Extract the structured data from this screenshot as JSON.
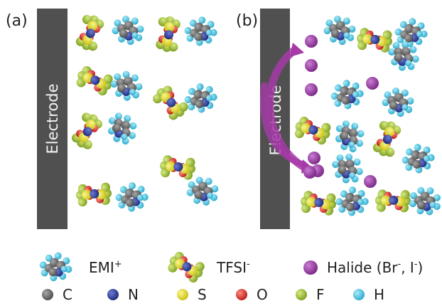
{
  "panels": [
    {
      "label": "(a)",
      "electrode_label": "Electrode"
    },
    {
      "label": "(b)",
      "electrode_label": "Electrode"
    }
  ],
  "legend": {
    "species": [
      {
        "key": "emi",
        "name": "EMI",
        "superscript": "+"
      },
      {
        "key": "tfsi",
        "name": "TFSI",
        "superscript": "-"
      },
      {
        "key": "halide",
        "text": "Halide (Br",
        "sup1": "-",
        "mid": ", I",
        "sup2": "-",
        "end": ")"
      }
    ],
    "atoms": [
      {
        "symbol": "C",
        "color": "#6b6b6b"
      },
      {
        "symbol": "N",
        "color": "#2e3e9c"
      },
      {
        "symbol": "S",
        "color": "#e8e02a"
      },
      {
        "symbol": "O",
        "color": "#e02a2a"
      },
      {
        "symbol": "F",
        "color": "#a9c73a"
      },
      {
        "symbol": "H",
        "color": "#4cc8e8"
      }
    ]
  },
  "colors": {
    "electrode": "#505050",
    "halide": "#9b35a6",
    "arrow": "#a63aa8",
    "background": "#ffffff"
  }
}
